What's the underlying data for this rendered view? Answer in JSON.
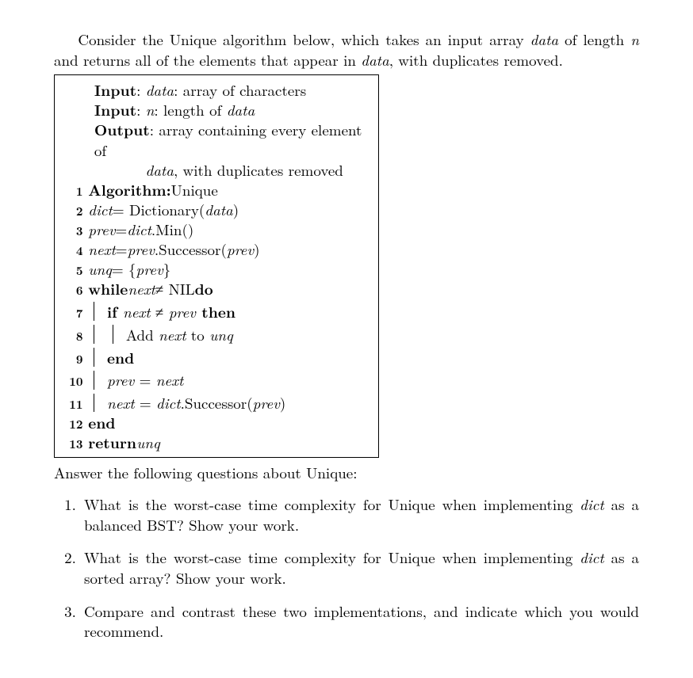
{
  "intro": {
    "line1_a": "Consider the Unique algorithm below, which takes an input array ",
    "line1_b": "data",
    "line1_c": " of length ",
    "line1_d": "n",
    "line1_e": " and returns all of the elements that appear in ",
    "line1_f": "data",
    "line1_g": ", with duplicates removed."
  },
  "algo": {
    "input1_label": "Input",
    "input1_a": ": ",
    "input1_b": "data",
    "input1_c": ": array of characters",
    "input2_label": "Input",
    "input2_a": ": ",
    "input2_b": "n",
    "input2_c": ": length of ",
    "input2_d": "data",
    "output_label": "Output",
    "output_a": ": array containing every element of",
    "output_b": "data",
    "output_c": ", with duplicates removed",
    "l1_no": "1",
    "l1_kw": "Algorithm:",
    "l1_txt": " Unique",
    "l2_no": "2",
    "l2_a": "dict",
    "l2_b": " = Dictionary(",
    "l2_c": "data",
    "l2_d": ")",
    "l3_no": "3",
    "l3_a": "prev",
    "l3_b": " = ",
    "l3_c": "dict",
    "l3_d": ".Min()",
    "l4_no": "4",
    "l4_a": "next",
    "l4_b": " = ",
    "l4_c": "prev",
    "l4_d": ".Successor(",
    "l4_e": "prev",
    "l4_f": ")",
    "l5_no": "5",
    "l5_a": "unq",
    "l5_b": " = {",
    "l5_c": "prev",
    "l5_d": "}",
    "l6_no": "6",
    "l6_kw1": "while ",
    "l6_a": "next",
    "l6_b": " ≠ NIL ",
    "l6_kw2": "do",
    "l7_no": "7",
    "l7_kw1": "if ",
    "l7_a": "next",
    "l7_b": " ≠ ",
    "l7_c": "prev",
    "l7_kw2": " then",
    "l8_no": "8",
    "l8_a": "Add ",
    "l8_b": "next",
    "l8_c": " to ",
    "l8_d": "unq",
    "l9_no": "9",
    "l9_kw": "end",
    "l10_no": "10",
    "l10_a": "prev",
    "l10_b": " = ",
    "l10_c": "next",
    "l11_no": "11",
    "l11_a": "next",
    "l11_b": " = ",
    "l11_c": "dict",
    "l11_d": ".Successor(",
    "l11_e": "prev",
    "l11_f": ")",
    "l12_no": "12",
    "l12_kw": "end",
    "l13_no": "13",
    "l13_kw": "return ",
    "l13_a": "unq"
  },
  "follow": "Answer the following questions about Unique:",
  "q1_a": "What is the worst-case time complexity for Unique when implementing ",
  "q1_b": "dict",
  "q1_c": " as a balanced BST? Show your work.",
  "q2_a": "What is the worst-case time complexity for Unique when implementing ",
  "q2_b": "dict",
  "q2_c": " as a sorted array? Show your work.",
  "q3": "Compare and contrast these two implementations, and indicate which you would recommend."
}
